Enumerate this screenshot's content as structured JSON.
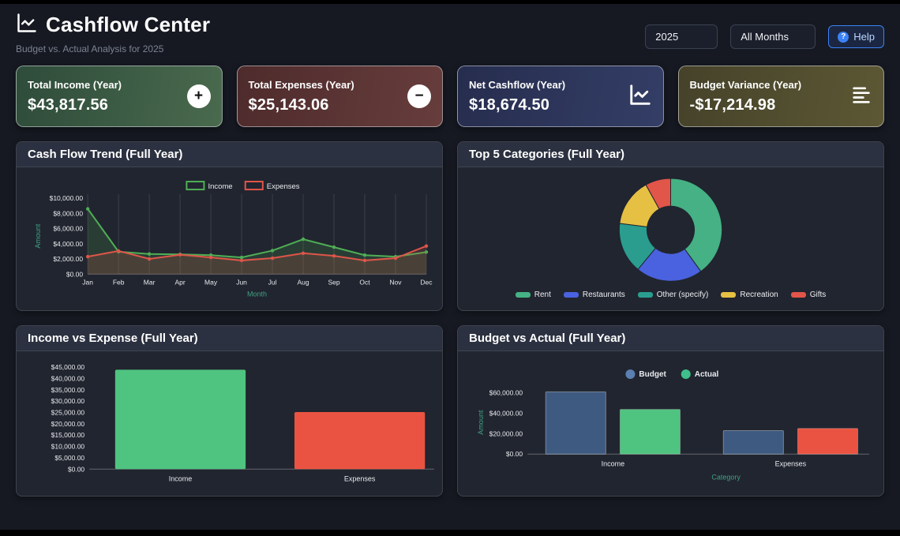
{
  "theme": {
    "accent_blue": "#3b82f6",
    "panel_bg": "#21252f",
    "axis_label_color": "#3fa183",
    "tick_color": "#e8eaee",
    "grid_color": "rgba(255,255,255,0.12)"
  },
  "header": {
    "title": "Cashflow Center",
    "subtitle": "Budget vs. Actual Analysis for 2025",
    "year_value": "2025",
    "month_value": "All Months",
    "help_label": "Help",
    "help_icon_glyph": "?"
  },
  "kpis": [
    {
      "label": "Total Income (Year)",
      "value": "$43,817.56",
      "icon": "plus-icon"
    },
    {
      "label": "Total Expenses (Year)",
      "value": "$25,143.06",
      "icon": "minus-icon"
    },
    {
      "label": "Net Cashflow (Year)",
      "value": "$18,674.50",
      "icon": "chart-line-icon"
    },
    {
      "label": "Budget Variance (Year)",
      "value": "-$17,214.98",
      "icon": "report-list-icon"
    }
  ],
  "chart_data": [
    {
      "id": "trend",
      "type": "line",
      "title": "Cash Flow Trend (Full Year)",
      "xlabel": "Month",
      "ylabel": "Amount",
      "ylim": [
        0,
        10000
      ],
      "yticks": [
        0,
        2000,
        4000,
        6000,
        8000,
        10000
      ],
      "ytick_labels": [
        "$0.00",
        "$2,000.00",
        "$4,000.00",
        "$6,000.00",
        "$8,000.00",
        "$10,000.00"
      ],
      "x": [
        "Jan",
        "Feb",
        "Mar",
        "Apr",
        "May",
        "Jun",
        "Jul",
        "Aug",
        "Sep",
        "Oct",
        "Nov",
        "Dec"
      ],
      "series": [
        {
          "name": "Income",
          "color": "#4fae55",
          "values": [
            8600,
            2950,
            2650,
            2600,
            2500,
            2200,
            3100,
            4600,
            3550,
            2500,
            2300,
            2900
          ]
        },
        {
          "name": "Expenses",
          "color": "#df5549",
          "values": [
            2300,
            3050,
            2000,
            2550,
            2200,
            1800,
            2100,
            2750,
            2400,
            1800,
            2100,
            3700
          ]
        }
      ],
      "grid": "vertical",
      "legend_position": "top"
    },
    {
      "id": "categories",
      "type": "pie",
      "title": "Top 5 Categories (Full Year)",
      "labels": [
        "Rent",
        "Restaurants",
        "Other (specify)",
        "Recreation",
        "Gifts"
      ],
      "values": [
        40,
        21,
        16,
        15,
        8
      ],
      "value_unit": "percent-share (estimated from arc angles)",
      "colors": [
        "#45b184",
        "#4a62df",
        "#2a9d8f",
        "#e5c043",
        "#e25549"
      ],
      "donut": true,
      "legend_position": "bottom"
    },
    {
      "id": "income-expense",
      "type": "bar",
      "title": "Income vs Expense (Full Year)",
      "categories": [
        "Income",
        "Expenses"
      ],
      "values": [
        43817.56,
        25143.06
      ],
      "colors": [
        "#4fc380",
        "#ea5341"
      ],
      "ylim": [
        0,
        45000
      ],
      "yticks": [
        0,
        5000,
        10000,
        15000,
        20000,
        25000,
        30000,
        35000,
        40000,
        45000
      ],
      "ytick_labels": [
        "$0.00",
        "$5,000.00",
        "$10,000.00",
        "$15,000.00",
        "$20,000.00",
        "$25,000.00",
        "$30,000.00",
        "$35,000.00",
        "$40,000.00",
        "$45,000.00"
      ]
    },
    {
      "id": "budget-actual",
      "type": "grouped-bar",
      "title": "Budget vs Actual (Full Year)",
      "categories": [
        "Income",
        "Expenses"
      ],
      "series": [
        {
          "name": "Budget",
          "color": "#3e5a80",
          "legend_color": "#5b7fb0",
          "values": [
            61032.54,
            23000.0
          ]
        },
        {
          "name": "Actual",
          "colors": [
            "#4fc380",
            "#ea5341"
          ],
          "legend_color": "#3fbf8a",
          "values": [
            43817.56,
            25143.06
          ]
        }
      ],
      "xlabel": "Category",
      "ylabel": "Amount",
      "ylim": [
        0,
        62000
      ],
      "yticks": [
        0,
        20000,
        40000,
        60000
      ],
      "ytick_labels": [
        "$0.00",
        "$20,000.00",
        "$40,000.00",
        "$60,000.00"
      ],
      "legend_position": "top"
    }
  ]
}
